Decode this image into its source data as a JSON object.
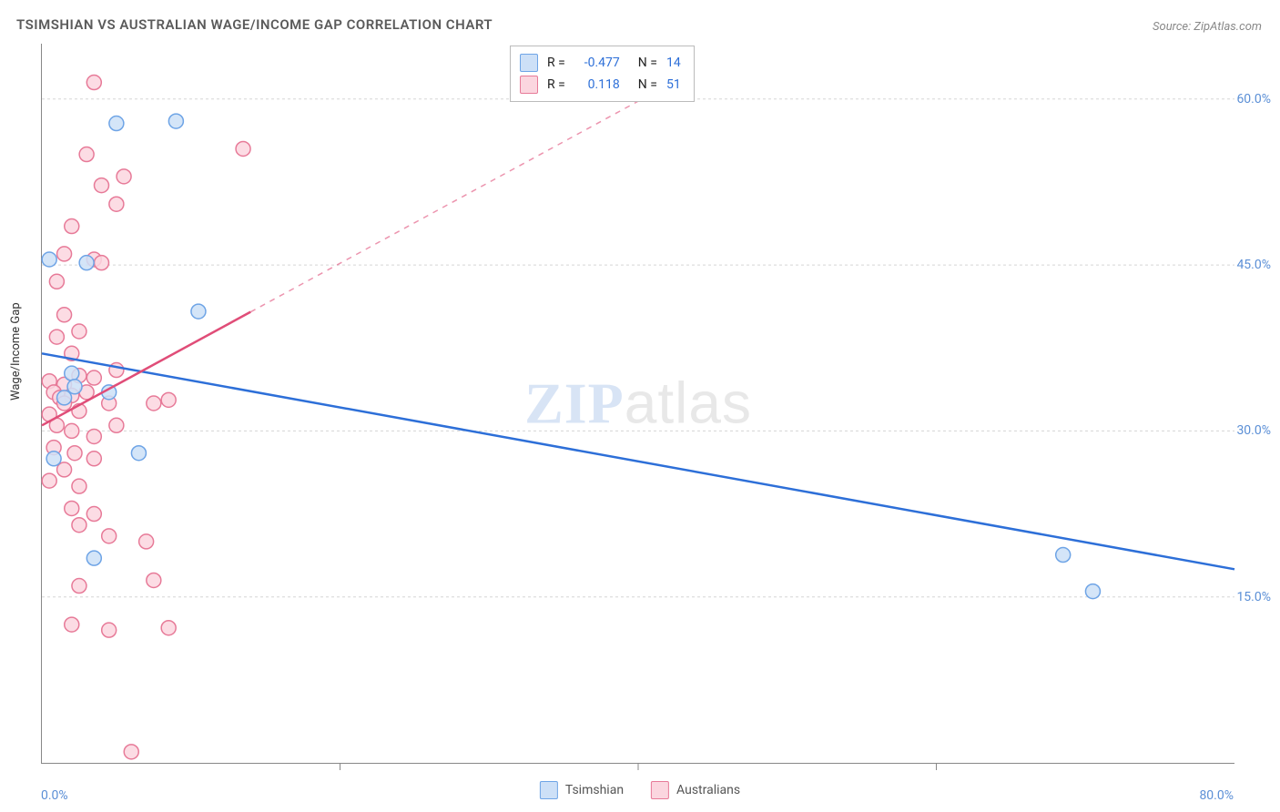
{
  "title": "TSIMSHIAN VS AUSTRALIAN WAGE/INCOME GAP CORRELATION CHART",
  "source": "Source: ZipAtlas.com",
  "y_axis_label": "Wage/Income Gap",
  "watermark_a": "ZIP",
  "watermark_b": "atlas",
  "chart": {
    "type": "scatter",
    "xlim": [
      0,
      80
    ],
    "ylim": [
      0,
      65
    ],
    "x_ticks": [
      {
        "value": 0,
        "label": "0.0%",
        "align": "left"
      },
      {
        "value": 80,
        "label": "80.0%",
        "align": "right"
      }
    ],
    "x_minor_ticks": [
      20,
      40,
      60
    ],
    "y_ticks": [
      {
        "value": 15,
        "label": "15.0%"
      },
      {
        "value": 30,
        "label": "30.0%"
      },
      {
        "value": 45,
        "label": "45.0%"
      },
      {
        "value": 60,
        "label": "60.0%"
      }
    ],
    "grid_color": "#d5d5d5",
    "background_color": "#ffffff",
    "series": [
      {
        "name": "Tsimshian",
        "key": "tsimshian",
        "marker_fill": "#cde0f7",
        "marker_stroke": "#6ea4e6",
        "marker_radius": 8,
        "trend_color": "#2d6fd8",
        "trend_width": 2.5,
        "trend_p1": [
          0,
          37
        ],
        "trend_p2": [
          80,
          17.5
        ],
        "trend_dash_from_x": null,
        "stats": {
          "R": "-0.477",
          "N": "14"
        },
        "points": [
          [
            0.5,
            45.5
          ],
          [
            2.0,
            35.2
          ],
          [
            2.2,
            34.0
          ],
          [
            5.0,
            57.8
          ],
          [
            9.0,
            58.0
          ],
          [
            10.5,
            40.8
          ],
          [
            4.5,
            33.5
          ],
          [
            6.5,
            28.0
          ],
          [
            3.5,
            18.5
          ],
          [
            0.8,
            27.5
          ],
          [
            3.0,
            45.2
          ],
          [
            68.5,
            18.8
          ],
          [
            70.5,
            15.5
          ],
          [
            1.5,
            33.0
          ]
        ]
      },
      {
        "name": "Australians",
        "key": "australians",
        "marker_fill": "#fbd6df",
        "marker_stroke": "#e77a98",
        "marker_radius": 8,
        "trend_color": "#e04d78",
        "trend_width": 2.5,
        "trend_p1": [
          0,
          30.5
        ],
        "trend_p2": [
          43,
          62
        ],
        "trend_dash_from_x": 14,
        "stats": {
          "R": "0.118",
          "N": "51"
        },
        "points": [
          [
            3.5,
            61.5
          ],
          [
            3.0,
            55.0
          ],
          [
            5.5,
            53.0
          ],
          [
            4.0,
            52.2
          ],
          [
            5.0,
            50.5
          ],
          [
            13.5,
            55.5
          ],
          [
            2.0,
            48.5
          ],
          [
            1.5,
            46.0
          ],
          [
            3.5,
            45.5
          ],
          [
            4.0,
            45.2
          ],
          [
            1.0,
            43.5
          ],
          [
            1.5,
            40.5
          ],
          [
            2.5,
            39.0
          ],
          [
            1.0,
            38.5
          ],
          [
            2.0,
            37.0
          ],
          [
            0.5,
            34.5
          ],
          [
            1.5,
            34.2
          ],
          [
            2.5,
            35.0
          ],
          [
            3.5,
            34.8
          ],
          [
            5.0,
            35.5
          ],
          [
            0.8,
            33.5
          ],
          [
            1.2,
            33.0
          ],
          [
            2.0,
            33.2
          ],
          [
            3.0,
            33.5
          ],
          [
            1.5,
            32.5
          ],
          [
            0.5,
            31.5
          ],
          [
            2.5,
            31.8
          ],
          [
            4.5,
            32.5
          ],
          [
            7.5,
            32.5
          ],
          [
            8.5,
            32.8
          ],
          [
            1.0,
            30.5
          ],
          [
            2.0,
            30.0
          ],
          [
            3.5,
            29.5
          ],
          [
            5.0,
            30.5
          ],
          [
            0.8,
            28.5
          ],
          [
            2.2,
            28.0
          ],
          [
            3.5,
            27.5
          ],
          [
            1.5,
            26.5
          ],
          [
            0.5,
            25.5
          ],
          [
            2.5,
            25.0
          ],
          [
            2.0,
            23.0
          ],
          [
            3.5,
            22.5
          ],
          [
            2.5,
            21.5
          ],
          [
            7.0,
            20.0
          ],
          [
            4.5,
            20.5
          ],
          [
            2.5,
            16.0
          ],
          [
            7.5,
            16.5
          ],
          [
            2.0,
            12.5
          ],
          [
            4.5,
            12.0
          ],
          [
            8.5,
            12.2
          ],
          [
            6.0,
            1.0
          ]
        ]
      }
    ]
  },
  "stats_legend": {
    "rows": [
      {
        "swatch_fill": "#cde0f7",
        "swatch_stroke": "#6ea4e6",
        "r_label": "R =",
        "r_val": "-0.477",
        "n_label": "N =",
        "n_val": "14"
      },
      {
        "swatch_fill": "#fbd6df",
        "swatch_stroke": "#e77a98",
        "r_label": "R =",
        "r_val": "0.118",
        "n_label": "N =",
        "n_val": "51"
      }
    ]
  },
  "bottom_legend": {
    "items": [
      {
        "swatch_fill": "#cde0f7",
        "swatch_stroke": "#6ea4e6",
        "label": "Tsimshian"
      },
      {
        "swatch_fill": "#fbd6df",
        "swatch_stroke": "#e77a98",
        "label": "Australians"
      }
    ]
  }
}
